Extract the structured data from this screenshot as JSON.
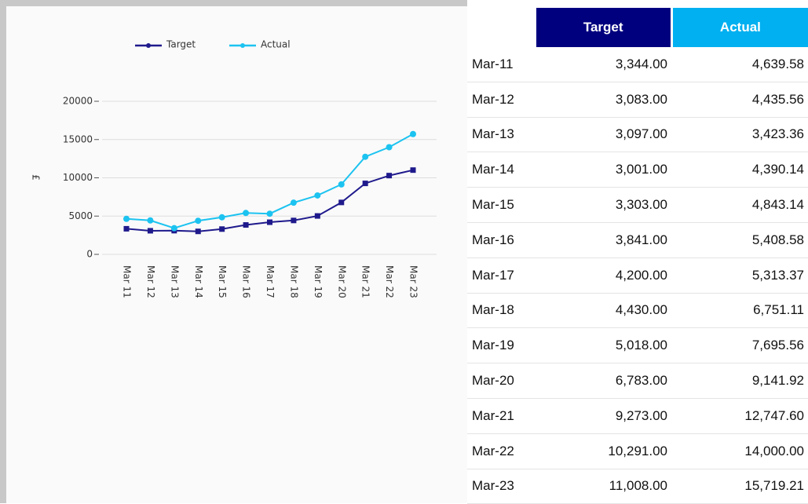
{
  "chart_data": {
    "type": "line",
    "y_label": "£",
    "categories": [
      "Mar 11",
      "Mar 12",
      "Mar 13",
      "Mar 14",
      "Mar 15",
      "Mar 16",
      "Mar 17",
      "Mar 18",
      "Mar 19",
      "Mar 20",
      "Mar 21",
      "Mar 22",
      "Mar 23"
    ],
    "series": [
      {
        "name": "Target",
        "color": "#1f1a8c",
        "values": [
          3344,
          3083,
          3097,
          3001,
          3303,
          3841,
          4200,
          4430,
          5018,
          6783,
          9273,
          10291,
          11008
        ]
      },
      {
        "name": "Actual",
        "color": "#1cc3f0",
        "values": [
          4639.58,
          4435.56,
          3423.36,
          4390.14,
          4843.14,
          5408.58,
          5313.37,
          6751.11,
          7695.56,
          9141.92,
          12747.6,
          14000,
          15719.21
        ]
      }
    ],
    "ylim": [
      0,
      20000
    ],
    "yticks": [
      0,
      5000,
      10000,
      15000,
      20000
    ],
    "grid": true,
    "legend": "top"
  },
  "table": {
    "header": [
      "Target",
      "Actual"
    ],
    "rows": [
      [
        "Mar-11",
        "3,344.00",
        "4,639.58"
      ],
      [
        "Mar-12",
        "3,083.00",
        "4,435.56"
      ],
      [
        "Mar-13",
        "3,097.00",
        "3,423.36"
      ],
      [
        "Mar-14",
        "3,001.00",
        "4,390.14"
      ],
      [
        "Mar-15",
        "3,303.00",
        "4,843.14"
      ],
      [
        "Mar-16",
        "3,841.00",
        "5,408.58"
      ],
      [
        "Mar-17",
        "4,200.00",
        "5,313.37"
      ],
      [
        "Mar-18",
        "4,430.00",
        "6,751.11"
      ],
      [
        "Mar-19",
        "5,018.00",
        "7,695.56"
      ],
      [
        "Mar-20",
        "6,783.00",
        "9,141.92"
      ],
      [
        "Mar-21",
        "9,273.00",
        "12,747.60"
      ],
      [
        "Mar-22",
        "10,291.00",
        "14,000.00"
      ],
      [
        "Mar-23",
        "11,008.00",
        "15,719.21"
      ]
    ]
  }
}
